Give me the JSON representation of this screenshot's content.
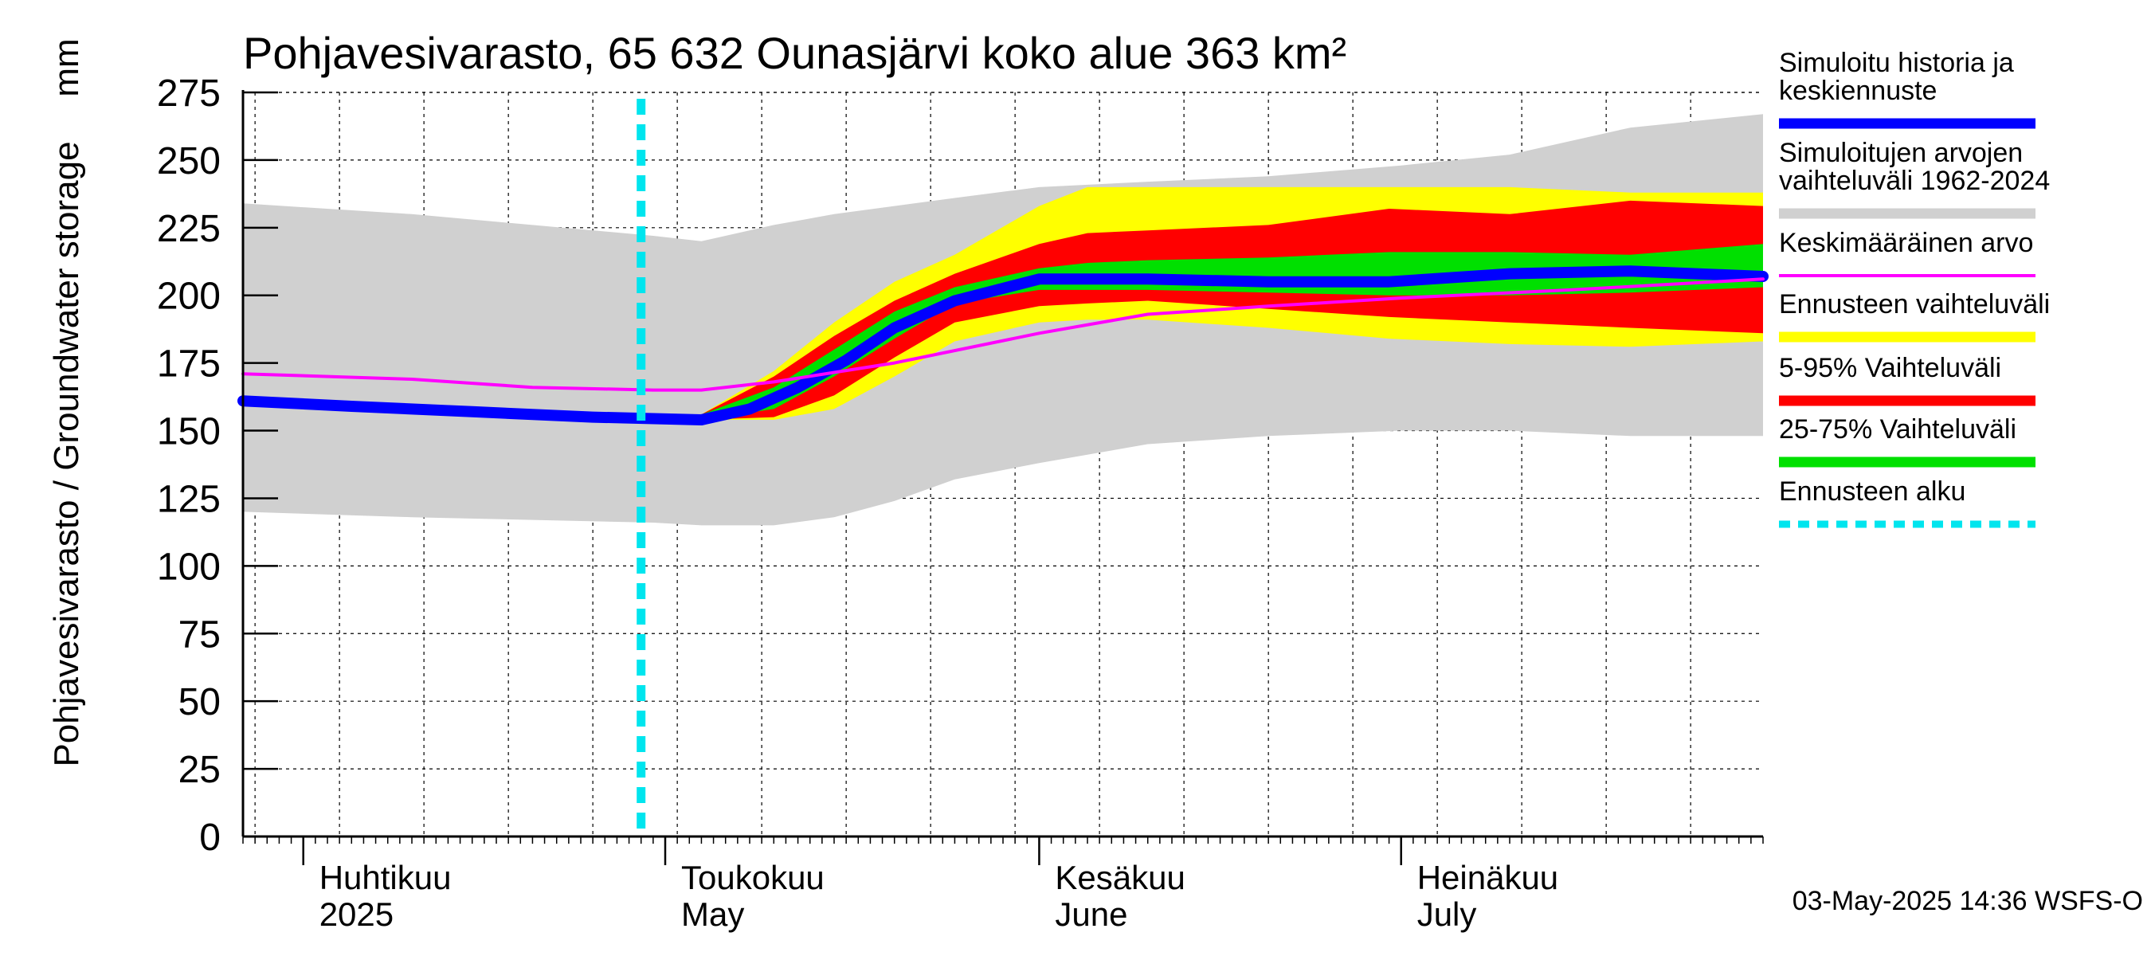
{
  "chart_data": {
    "type": "area",
    "title": "Pohjavesivarasto, 65 632 Ounasjärvi koko alue 363 km²",
    "ylabel": "Pohjavesivarasto / Groundwater storage",
    "yunit": "mm",
    "ylim": [
      0,
      275
    ],
    "yticks": [
      0,
      25,
      50,
      75,
      100,
      125,
      150,
      175,
      200,
      225,
      250,
      275
    ],
    "xlim": [
      "2025-03-27",
      "2025-07-31"
    ],
    "grid": true,
    "legend_placement": "right",
    "month_labels": [
      {
        "date": "2025-04-01",
        "line1": "Huhtikuu",
        "line2": "2025"
      },
      {
        "date": "2025-05-01",
        "line1": "Toukokuu",
        "line2": "May"
      },
      {
        "date": "2025-06-01",
        "line1": "Kesäkuu",
        "line2": "June"
      },
      {
        "date": "2025-07-01",
        "line1": "Heinäkuu",
        "line2": "July"
      }
    ],
    "forecast_start": "2025-04-29",
    "footer": "03-May-2025 14:36 WSFS-O",
    "bands": [
      {
        "name": "Simuloitujen arvojen vaihteluväli 1962-2024",
        "color": "#d0d0d0",
        "x": [
          "2025-03-27",
          "2025-04-10",
          "2025-04-20",
          "2025-04-30",
          "2025-05-04",
          "2025-05-10",
          "2025-05-15",
          "2025-05-20",
          "2025-05-25",
          "2025-06-01",
          "2025-06-10",
          "2025-06-20",
          "2025-07-01",
          "2025-07-10",
          "2025-07-20",
          "2025-07-31"
        ],
        "upper": [
          234,
          230,
          226,
          222,
          220,
          226,
          230,
          233,
          236,
          240,
          242,
          244,
          248,
          252,
          262,
          267
        ],
        "lower": [
          120,
          118,
          117,
          116,
          115,
          115,
          118,
          124,
          132,
          138,
          145,
          148,
          150,
          150,
          148,
          148
        ]
      },
      {
        "name": "Ennusteen vaihteluväli",
        "color": "#ffff00",
        "x": [
          "2025-05-04",
          "2025-05-10",
          "2025-05-15",
          "2025-05-20",
          "2025-05-25",
          "2025-06-01",
          "2025-06-05",
          "2025-06-10",
          "2025-06-20",
          "2025-06-30",
          "2025-07-10",
          "2025-07-20",
          "2025-07-31"
        ],
        "upper": [
          156,
          172,
          190,
          205,
          215,
          233,
          240,
          240,
          240,
          240,
          240,
          238,
          238
        ],
        "lower": [
          154,
          154,
          158,
          170,
          183,
          190,
          191,
          191,
          188,
          184,
          182,
          181,
          183
        ]
      },
      {
        "name": "5-95% Vaihteluväli",
        "color": "#ff0000",
        "x": [
          "2025-05-04",
          "2025-05-10",
          "2025-05-15",
          "2025-05-20",
          "2025-05-25",
          "2025-06-01",
          "2025-06-05",
          "2025-06-10",
          "2025-06-20",
          "2025-06-30",
          "2025-07-10",
          "2025-07-20",
          "2025-07-31"
        ],
        "upper": [
          156,
          170,
          185,
          198,
          208,
          219,
          223,
          224,
          226,
          232,
          230,
          235,
          233
        ],
        "lower": [
          154,
          155,
          163,
          177,
          190,
          196,
          197,
          198,
          195,
          192,
          190,
          188,
          186
        ]
      },
      {
        "name": "25-75% Vaihteluväli",
        "color": "#00e000",
        "x": [
          "2025-05-04",
          "2025-05-10",
          "2025-05-15",
          "2025-05-20",
          "2025-05-25",
          "2025-06-01",
          "2025-06-05",
          "2025-06-10",
          "2025-06-20",
          "2025-06-30",
          "2025-07-10",
          "2025-07-20",
          "2025-07-31"
        ],
        "upper": [
          156,
          166,
          180,
          194,
          203,
          210,
          212,
          213,
          214,
          216,
          216,
          215,
          219
        ],
        "lower": [
          154,
          158,
          170,
          184,
          197,
          202,
          202,
          202,
          201,
          200,
          200,
          201,
          203
        ]
      }
    ],
    "series": [
      {
        "name": "Simuloitu historia ja keskiennuste",
        "color": "#0000ff",
        "x": [
          "2025-03-27",
          "2025-04-05",
          "2025-04-15",
          "2025-04-25",
          "2025-05-04",
          "2025-05-08",
          "2025-05-12",
          "2025-05-16",
          "2025-05-20",
          "2025-05-25",
          "2025-06-01",
          "2025-06-10",
          "2025-06-20",
          "2025-06-30",
          "2025-07-10",
          "2025-07-20",
          "2025-07-31"
        ],
        "values": [
          161,
          159,
          157,
          155,
          154,
          158,
          166,
          176,
          188,
          198,
          206,
          206,
          205,
          205,
          208,
          209,
          207
        ]
      },
      {
        "name": "Keskimääräinen arvo",
        "color": "#ff00ff",
        "x": [
          "2025-03-27",
          "2025-04-10",
          "2025-04-20",
          "2025-04-30",
          "2025-05-04",
          "2025-05-10",
          "2025-05-20",
          "2025-06-01",
          "2025-06-10",
          "2025-06-20",
          "2025-07-01",
          "2025-07-15",
          "2025-07-31"
        ],
        "values": [
          171,
          169,
          166,
          165,
          165,
          168,
          175,
          186,
          193,
          196,
          199,
          202,
          206
        ]
      }
    ],
    "legend": [
      {
        "lines": [
          "Simuloitu historia ja",
          "keskiennuste"
        ],
        "color": "#0000ff",
        "style": "thick"
      },
      {
        "lines": [
          "Simuloitujen arvojen",
          "vaihteluväli 1962-2024"
        ],
        "color": "#d0d0d0",
        "style": "thick"
      },
      {
        "lines": [
          "Keskimääräinen arvo"
        ],
        "color": "#ff00ff",
        "style": "thin"
      },
      {
        "lines": [
          "Ennusteen vaihteluväli"
        ],
        "color": "#ffff00",
        "style": "thick"
      },
      {
        "lines": [
          "5-95% Vaihteluväli"
        ],
        "color": "#ff0000",
        "style": "thick"
      },
      {
        "lines": [
          "25-75% Vaihteluväli"
        ],
        "color": "#00e000",
        "style": "thick"
      },
      {
        "lines": [
          "Ennusteen alku"
        ],
        "color": "#00e5ee",
        "style": "dashed"
      }
    ]
  }
}
